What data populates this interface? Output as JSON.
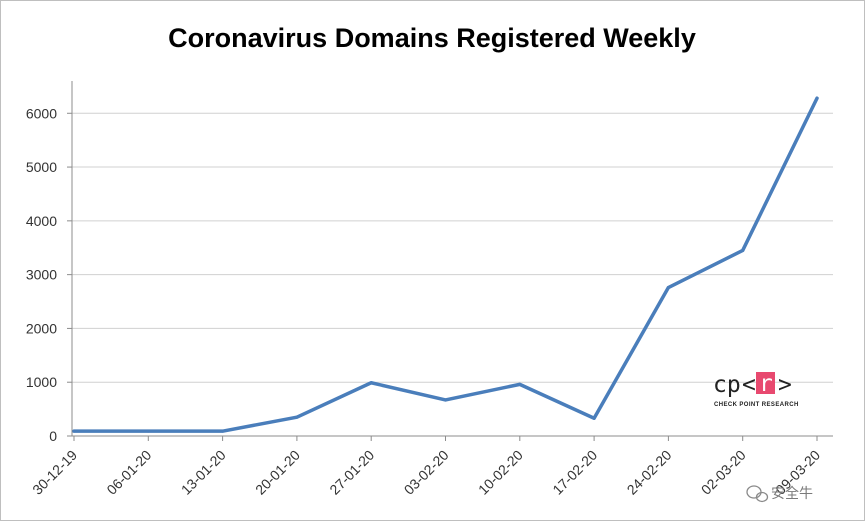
{
  "chart_data": {
    "type": "line",
    "title": "Coronavirus Domains Registered Weekly",
    "xlabel": "",
    "ylabel": "",
    "categories": [
      "30-12-19",
      "06-01-20",
      "13-01-20",
      "20-01-20",
      "27-01-20",
      "03-02-20",
      "10-02-20",
      "17-02-20",
      "24-02-20",
      "02-03-20",
      "09-03-20"
    ],
    "series": [
      {
        "values": [
          90,
          90,
          90,
          350,
          990,
          670,
          960,
          330,
          2760,
          3450,
          6280
        ],
        "color": "#4a7ebb"
      }
    ],
    "ylim": [
      0,
      6600
    ],
    "yticks": [
      0,
      1000,
      2000,
      3000,
      4000,
      5000,
      6000
    ],
    "grid": true,
    "legend": "none"
  },
  "logo": {
    "left": "cp",
    "open": "<",
    "mark": "r",
    "close": ">",
    "subtitle": "CHECK POINT RESEARCH",
    "accent": "#e8496f"
  },
  "watermark": {
    "icon": "wechat-icon",
    "text": "安全牛"
  }
}
